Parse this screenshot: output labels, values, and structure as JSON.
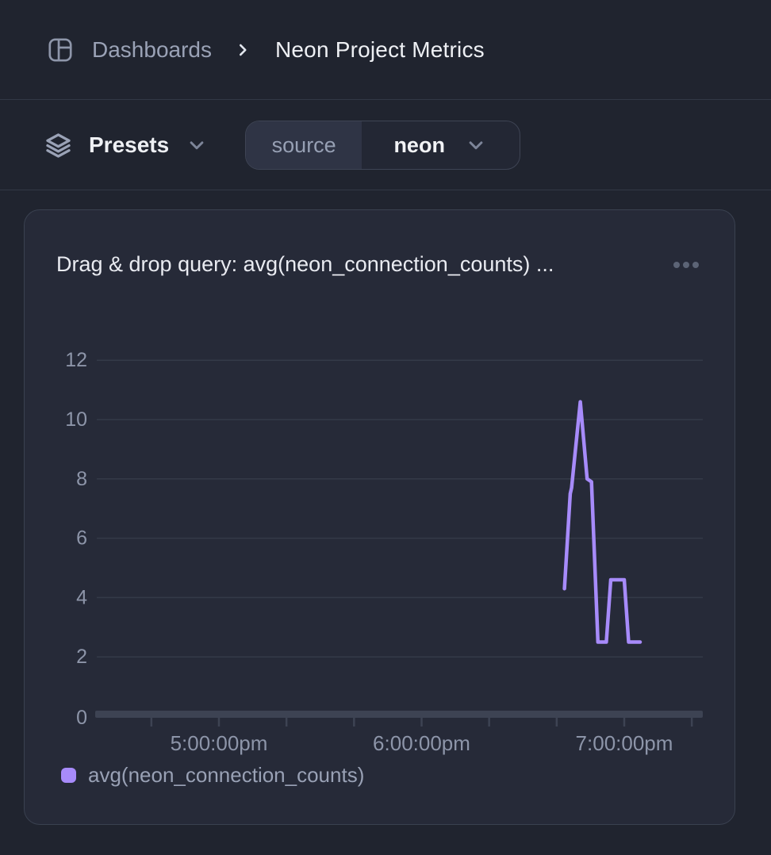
{
  "header": {
    "breadcrumb_root": "Dashboards",
    "title": "Neon Project Metrics"
  },
  "toolbar": {
    "presets_label": "Presets",
    "filter": {
      "key": "source",
      "value": "neon"
    }
  },
  "panel": {
    "title": "Drag & drop query: avg(neon_connection_counts) ...",
    "legend": [
      {
        "label": "avg(neon_connection_counts)",
        "color": "#a78bfa"
      }
    ]
  },
  "chart_data": {
    "type": "line",
    "title": "Drag & drop query: avg(neon_connection_counts) ...",
    "grid": "horizontal",
    "legend_position": "bottom-left",
    "ylim": [
      0,
      13
    ],
    "y_ticks": [
      0,
      2,
      4,
      6,
      8,
      10,
      12
    ],
    "x_ticks": [
      {
        "minutes_after_5pm": -20,
        "label": ""
      },
      {
        "minutes_after_5pm": 0,
        "label": "5:00:00pm"
      },
      {
        "minutes_after_5pm": 20,
        "label": ""
      },
      {
        "minutes_after_5pm": 40,
        "label": ""
      },
      {
        "minutes_after_5pm": 60,
        "label": "6:00:00pm"
      },
      {
        "minutes_after_5pm": 80,
        "label": ""
      },
      {
        "minutes_after_5pm": 100,
        "label": ""
      },
      {
        "minutes_after_5pm": 120,
        "label": "7:00:00pm"
      },
      {
        "minutes_after_5pm": 140,
        "label": ""
      }
    ],
    "series": [
      {
        "name": "avg(neon_connection_counts)",
        "color": "#a78bfa",
        "points": [
          {
            "minutes_after_5pm": 102.3,
            "value": 4.3
          },
          {
            "minutes_after_5pm": 104.0,
            "value": 7.5
          },
          {
            "minutes_after_5pm": 104.4,
            "value": 7.7
          },
          {
            "minutes_after_5pm": 107.0,
            "value": 10.6
          },
          {
            "minutes_after_5pm": 109.0,
            "value": 8.0
          },
          {
            "minutes_after_5pm": 110.3,
            "value": 7.9
          },
          {
            "minutes_after_5pm": 112.2,
            "value": 2.5
          },
          {
            "minutes_after_5pm": 114.7,
            "value": 2.5
          },
          {
            "minutes_after_5pm": 116.0,
            "value": 4.6
          },
          {
            "minutes_after_5pm": 120.0,
            "value": 4.6
          },
          {
            "minutes_after_5pm": 121.3,
            "value": 2.5
          },
          {
            "minutes_after_5pm": 124.7,
            "value": 2.5
          }
        ]
      }
    ],
    "colors": {
      "gridline": "#343a48",
      "axis_bar": "#3d4353",
      "tick_label": "#8d95a9"
    }
  }
}
